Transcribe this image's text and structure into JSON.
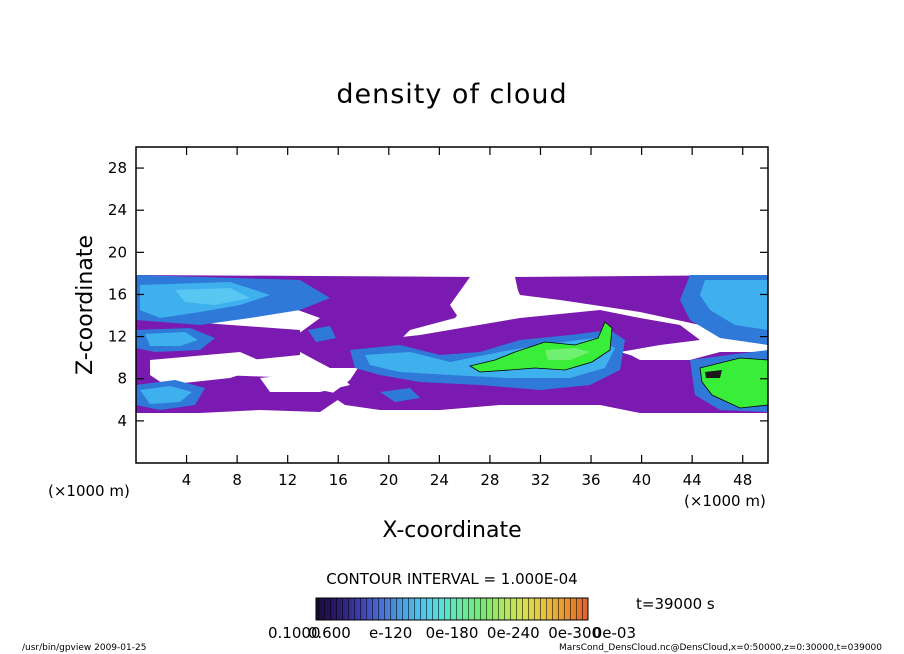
{
  "chart_data": {
    "type": "heatmap",
    "title": "density of cloud",
    "xlabel": "X-coordinate",
    "ylabel": "Z-coordinate",
    "x_unit_left": "(×1000 m)",
    "x_unit_right": "(×1000 m)",
    "xlim": [
      0,
      50
    ],
    "ylim": [
      0,
      30
    ],
    "xticks": [
      4,
      8,
      12,
      16,
      20,
      24,
      28,
      32,
      36,
      40,
      44,
      48
    ],
    "yticks": [
      4,
      8,
      12,
      16,
      20,
      24,
      28
    ],
    "contour_interval": "CONTOUR INTERVAL = 1.000E-04",
    "time_label": "t=39000 s",
    "colorbar_labels": [
      "0.1000",
      "0.600",
      "e-120",
      "0e-180",
      "0e-240",
      "0e-300",
      "0e-03"
    ],
    "colorbar_colors": [
      "#1a0a3a",
      "#2a1a6a",
      "#3b3aa8",
      "#4a6ad0",
      "#4a9ae0",
      "#52c2ea",
      "#5ae0d8",
      "#6ae8a0",
      "#7ae870",
      "#b0e860",
      "#d8e050",
      "#e8c040",
      "#e89030",
      "#e06030"
    ],
    "fields": [
      {
        "name": "purple band",
        "color": "#7a1ab0",
        "x_range": [
          0,
          50
        ],
        "z_range": [
          4.8,
          17.6
        ]
      },
      {
        "name": "light blue",
        "color": "#3fb0ee",
        "x_range": [
          0,
          12.5
        ],
        "z_range": [
          13.5,
          17.3
        ]
      },
      {
        "name": "light blue right",
        "color": "#3fb0ee",
        "x_range": [
          44,
          50
        ],
        "z_range": [
          13,
          17.3
        ]
      },
      {
        "name": "green core mid",
        "color": "#38ee38",
        "x_range": [
          30,
          37
        ],
        "z_range": [
          8.5,
          12
        ]
      },
      {
        "name": "green core right",
        "color": "#38ee38",
        "x_range": [
          44,
          50
        ],
        "z_range": [
          6,
          10
        ]
      }
    ],
    "grid": false,
    "legend": "bottom"
  },
  "footer": {
    "left": "/usr/bin/gpview   2009-01-25",
    "right": "MarsCond_DensCloud.nc@DensCloud,x=0:50000,z=0:30000,t=039000"
  }
}
